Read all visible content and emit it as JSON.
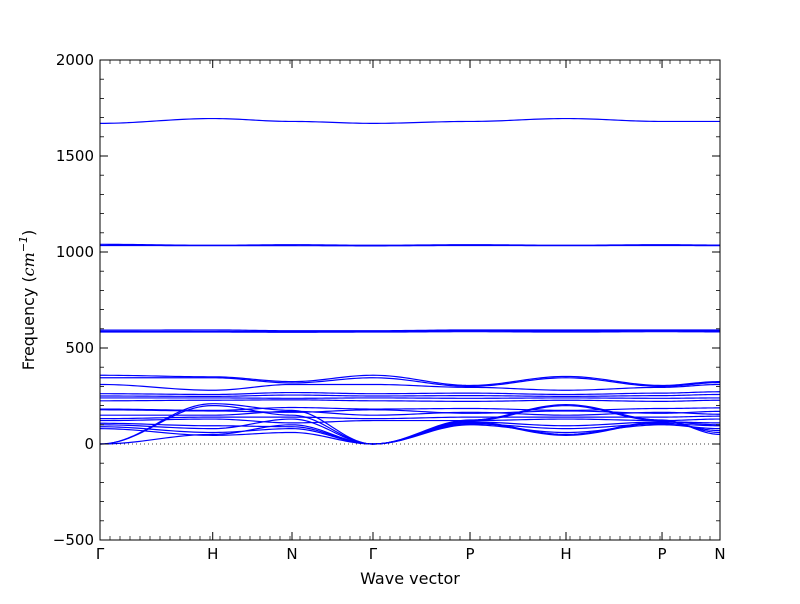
{
  "chart_data": {
    "type": "line",
    "xlabel": "Wave vector",
    "ylabel_prefix": "Frequency (",
    "ylabel_unit": "cm",
    "ylabel_exp": "−1",
    "ylabel_suffix": ")",
    "ylim": [
      -500,
      2000
    ],
    "yticks": [
      -500,
      0,
      500,
      1000,
      1500,
      2000
    ],
    "ytick_labels": [
      "−500",
      "0",
      "500",
      "1000",
      "1500",
      "2000"
    ],
    "xlim": [
      0,
      1
    ],
    "grid": false,
    "series_color": "#0000ff",
    "zero_line": 0,
    "high_symmetry_points": [
      {
        "label": "Γ",
        "x": 0.0
      },
      {
        "label": "H",
        "x": 0.1818
      },
      {
        "label": "N",
        "x": 0.3097
      },
      {
        "label": "Γ",
        "x": 0.4403
      },
      {
        "label": "P",
        "x": 0.5968
      },
      {
        "label": "H",
        "x": 0.7516
      },
      {
        "label": "P",
        "x": 0.9065
      },
      {
        "label": "N",
        "x": 1.0
      }
    ],
    "bands_at_high_symmetry_points": [
      [
        1670,
        1695,
        1680,
        1670,
        1680,
        1695,
        1680,
        1680
      ],
      [
        1040,
        1035,
        1038,
        1035,
        1038,
        1035,
        1038,
        1036
      ],
      [
        1034,
        1033,
        1033,
        1032,
        1034,
        1033,
        1034,
        1033
      ],
      [
        593,
        594,
        590,
        590,
        594,
        594,
        594,
        594
      ],
      [
        587,
        587,
        586,
        587,
        590,
        588,
        590,
        588
      ],
      [
        583,
        583,
        582,
        583,
        585,
        583,
        585,
        584
      ],
      [
        358,
        350,
        325,
        358,
        305,
        352,
        305,
        325
      ],
      [
        345,
        345,
        318,
        345,
        300,
        345,
        300,
        320
      ],
      [
        310,
        280,
        310,
        310,
        295,
        280,
        295,
        310
      ],
      [
        262,
        258,
        268,
        262,
        265,
        258,
        265,
        272
      ],
      [
        250,
        248,
        255,
        250,
        252,
        248,
        252,
        258
      ],
      [
        240,
        240,
        238,
        240,
        238,
        240,
        238,
        240
      ],
      [
        225,
        228,
        230,
        225,
        222,
        228,
        222,
        228
      ],
      [
        182,
        175,
        190,
        182,
        185,
        175,
        185,
        188
      ],
      [
        178,
        172,
        165,
        178,
        160,
        172,
        160,
        170
      ],
      [
        150,
        150,
        170,
        150,
        165,
        150,
        165,
        155
      ],
      [
        132,
        140,
        140,
        132,
        140,
        140,
        140,
        145
      ],
      [
        122,
        130,
        110,
        122,
        122,
        130,
        122,
        130
      ],
      [
        108,
        95,
        90,
        0,
        115,
        95,
        115,
        110
      ],
      [
        100,
        80,
        130,
        0,
        105,
        80,
        105,
        95
      ],
      [
        90,
        60,
        80,
        0,
        100,
        60,
        100,
        80
      ],
      [
        80,
        45,
        60,
        0,
        110,
        45,
        110,
        70
      ],
      [
        0,
        200,
        150,
        0,
        120,
        200,
        120,
        60
      ],
      [
        0,
        210,
        175,
        0,
        125,
        205,
        125,
        50
      ],
      [
        0,
        50,
        100,
        0,
        115,
        50,
        115,
        100
      ]
    ]
  }
}
